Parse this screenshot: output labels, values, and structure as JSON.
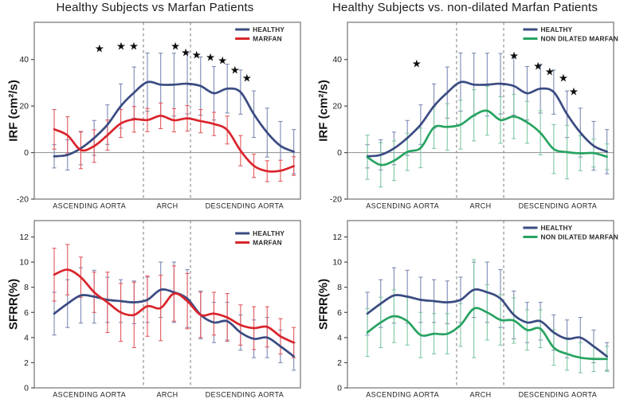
{
  "chart_data": [
    {
      "id": "irf-healthy-vs-marfan",
      "type": "line",
      "title": "Healthy Subjects vs Marfan Patients",
      "ylabel": "IRF (cm²/s)",
      "ylim": [
        -20,
        56
      ],
      "yticks": [
        -20,
        0,
        20,
        40
      ],
      "zero_line": true,
      "grid": false,
      "x_start": 0.075,
      "x_step": 0.05,
      "dividers_xf": [
        0.41,
        0.587
      ],
      "x_regions": [
        {
          "label": "ASCENDING AORTA",
          "xf": 0.207
        },
        {
          "label": "ARCH",
          "xf": 0.5
        },
        {
          "label": "DESCENDING AORTA",
          "xf": 0.79
        }
      ],
      "series": [
        {
          "name": "HEALTHY",
          "color": "#3A4B82",
          "err_color": "#7D8AB5",
          "values": [
            -1.6,
            -1,
            1.8,
            6.3,
            12,
            20,
            25.8,
            30.3,
            29.2,
            29.2,
            29.6,
            28.6,
            25.5,
            27.5,
            26,
            16.5,
            8.6,
            2.9,
            0.4
          ],
          "errors": [
            5,
            6.5,
            7,
            7.5,
            8.5,
            9.5,
            11,
            12.5,
            13.5,
            13.5,
            13,
            12.5,
            11.5,
            10.5,
            9.5,
            10,
            10.5,
            10.5,
            9.5
          ]
        },
        {
          "name": "MARFAN",
          "color": "#D9252C",
          "err_color": "#E2595E",
          "values": [
            10,
            7.4,
            1.1,
            2.8,
            7.5,
            12.5,
            14.3,
            14,
            15.8,
            13.9,
            14.7,
            13.5,
            12.3,
            9.7,
            0.8,
            -5.7,
            -8,
            -7.8,
            -5.8
          ],
          "errors": [
            8.5,
            8,
            8,
            7,
            6.5,
            6,
            5.5,
            5,
            5.5,
            5,
            5.5,
            5,
            5,
            6,
            6.5,
            5,
            4.5,
            4.5,
            4
          ]
        }
      ],
      "stars": [
        [
          0.245,
          44.7
        ],
        [
          0.326,
          45.7
        ],
        [
          0.374,
          45.7
        ],
        [
          0.53,
          45.7
        ],
        [
          0.569,
          43
        ],
        [
          0.61,
          42
        ],
        [
          0.662,
          41
        ],
        [
          0.707,
          39.5
        ],
        [
          0.754,
          35.4
        ],
        [
          0.799,
          32
        ]
      ],
      "legend": {
        "xf": 0.755,
        "dy": 9,
        "position": "top-right"
      }
    },
    {
      "id": "irf-healthy-vs-nondilated-marfan",
      "type": "line",
      "title": "Healthy Subjects vs. non-dilated Marfan Patients",
      "ylabel": "IRF (cm²/s)",
      "ylim": [
        -20,
        56
      ],
      "yticks": [
        -20,
        0,
        20,
        40
      ],
      "zero_line": true,
      "grid": false,
      "x_start": 0.075,
      "x_step": 0.05,
      "dividers_xf": [
        0.41,
        0.587
      ],
      "x_regions": [
        {
          "label": "ASCENDING AORTA",
          "xf": 0.207
        },
        {
          "label": "ARCH",
          "xf": 0.5
        },
        {
          "label": "DESCENDING AORTA",
          "xf": 0.79
        }
      ],
      "series": [
        {
          "name": "HEALTHY",
          "color": "#3A4B82",
          "err_color": "#7D8AB5",
          "values": [
            -1.6,
            -1,
            1.8,
            6.3,
            12,
            20,
            25.8,
            30.3,
            29.2,
            29.2,
            29.6,
            28.6,
            25.5,
            27.5,
            26,
            16.5,
            8.6,
            2.9,
            0.4
          ],
          "errors": [
            5,
            6.5,
            7,
            7.5,
            8.5,
            9.5,
            11,
            12.5,
            13.5,
            13.5,
            13,
            12.5,
            11.5,
            10.5,
            9.5,
            10,
            10.5,
            10.5,
            9.5
          ]
        },
        {
          "name": "NON DILATED MARFAN",
          "color": "#27A361",
          "err_color": "#7FC7A4",
          "values": [
            -2,
            -5.3,
            -3.5,
            0.3,
            2,
            10.8,
            11,
            12,
            16,
            18,
            14,
            15.5,
            13,
            8.5,
            1.5,
            0.2,
            -0.3,
            -0.2,
            -1.8
          ],
          "errors": [
            9.5,
            9.5,
            8.5,
            8,
            8.5,
            9,
            10,
            10.5,
            11,
            10.5,
            10,
            9.5,
            9,
            9.5,
            10.5,
            11.5,
            7.5,
            6,
            5.5
          ]
        }
      ],
      "stars": [
        [
          0.26,
          38.2
        ],
        [
          0.626,
          41.6
        ],
        [
          0.716,
          37.1
        ],
        [
          0.76,
          34.7
        ],
        [
          0.811,
          32
        ],
        [
          0.85,
          26.2
        ]
      ],
      "legend": {
        "xf": 0.66,
        "dy": 9,
        "position": "top-right"
      }
    },
    {
      "id": "sfrr-healthy-vs-marfan",
      "type": "line",
      "ylabel": "SFRR(%)",
      "ylim": [
        0,
        13.3
      ],
      "yticks": [
        0,
        2,
        4,
        6,
        8,
        10,
        12
      ],
      "zero_line": false,
      "grid": false,
      "x_start": 0.075,
      "x_step": 0.05,
      "dividers_xf": [
        0.41,
        0.587
      ],
      "x_regions": [
        {
          "label": "ASCENDING AORTA",
          "xf": 0.207
        },
        {
          "label": "ARCH",
          "xf": 0.5
        },
        {
          "label": "DESCENDING AORTA",
          "xf": 0.79
        }
      ],
      "series": [
        {
          "name": "HEALTHY",
          "color": "#3A4B82",
          "err_color": "#7D8AB5",
          "values": [
            5.9,
            6.7,
            7.35,
            7.25,
            7.0,
            6.9,
            6.8,
            7.0,
            7.8,
            7.6,
            7.1,
            5.8,
            5.2,
            5.3,
            4.4,
            3.9,
            4.0,
            3.3,
            2.5
          ],
          "errors": [
            1.7,
            1.9,
            2.2,
            2.1,
            1.8,
            1.7,
            1.7,
            1.8,
            2.2,
            2.4,
            2.3,
            1.9,
            1.6,
            1.5,
            1.4,
            1.5,
            1.6,
            1.3,
            1.1
          ]
        },
        {
          "name": "MARFAN",
          "color": "#D9252C",
          "err_color": "#E2595E",
          "values": [
            9.0,
            9.4,
            8.8,
            7.6,
            6.8,
            6.0,
            5.8,
            6.5,
            6.35,
            7.5,
            6.9,
            5.8,
            5.9,
            5.6,
            5.0,
            4.75,
            4.85,
            4.1,
            3.6
          ],
          "errors": [
            2.1,
            2.0,
            1.6,
            1.6,
            2.4,
            2.3,
            2.6,
            2.4,
            2.6,
            2.2,
            2.2,
            1.8,
            1.7,
            1.9,
            1.6,
            1.7,
            1.6,
            1.4,
            1.2
          ]
        }
      ],
      "stars": [],
      "legend": {
        "xf": 0.755,
        "dy": 16,
        "position": "top-right"
      }
    },
    {
      "id": "sfrr-healthy-vs-nondilated-marfan",
      "type": "line",
      "ylabel": "SFRR(%)",
      "ylim": [
        0,
        13.3
      ],
      "yticks": [
        0,
        2,
        4,
        6,
        8,
        10,
        12
      ],
      "zero_line": false,
      "grid": false,
      "x_start": 0.075,
      "x_step": 0.05,
      "dividers_xf": [
        0.41,
        0.587
      ],
      "x_regions": [
        {
          "label": "ASCENDING AORTA",
          "xf": 0.207
        },
        {
          "label": "ARCH",
          "xf": 0.5
        },
        {
          "label": "DESCENDING AORTA",
          "xf": 0.79
        }
      ],
      "series": [
        {
          "name": "HEALTHY",
          "color": "#3A4B82",
          "err_color": "#7D8AB5",
          "values": [
            5.9,
            6.7,
            7.35,
            7.25,
            7.0,
            6.9,
            6.8,
            7.0,
            7.8,
            7.6,
            7.1,
            5.8,
            5.2,
            5.3,
            4.4,
            3.9,
            4.0,
            3.3,
            2.5
          ],
          "errors": [
            1.7,
            1.9,
            2.2,
            2.1,
            1.8,
            1.7,
            1.7,
            1.8,
            2.2,
            2.4,
            2.3,
            1.9,
            1.6,
            1.5,
            1.4,
            1.5,
            1.6,
            1.3,
            1.1
          ]
        },
        {
          "name": "NON DILATED MARFAN",
          "color": "#27A361",
          "err_color": "#7FC7A4",
          "values": [
            4.4,
            5.2,
            5.7,
            5.3,
            4.2,
            4.3,
            4.3,
            5.0,
            6.3,
            6.0,
            5.4,
            5.35,
            4.6,
            4.7,
            3.2,
            2.7,
            2.4,
            2.3,
            2.3
          ],
          "errors": [
            1.9,
            2.0,
            2.1,
            1.9,
            1.8,
            1.6,
            1.6,
            1.7,
            3.9,
            2.2,
            2.0,
            1.8,
            1.6,
            1.5,
            1.4,
            1.3,
            1.2,
            1.0,
            1.0
          ]
        }
      ],
      "stars": [],
      "legend": {
        "xf": 0.66,
        "dy": 9,
        "position": "top-right"
      }
    }
  ],
  "style": {
    "frame_color": "#858585",
    "divider_color": "#8f8f8f",
    "zero_line_color": "#9b9b9b",
    "text_color": "#1c1c1c",
    "star_color": "#0d0d0d"
  }
}
